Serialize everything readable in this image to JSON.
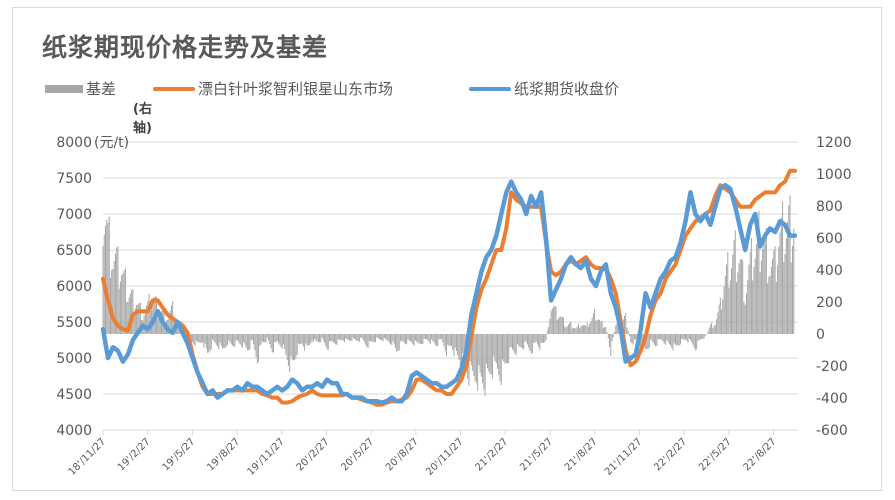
{
  "title": "纸浆期现价格走势及基差",
  "legend": {
    "basis": {
      "label": "基差",
      "sub": "(右轴)",
      "color": "#a6a6a6"
    },
    "spot": {
      "label": "漂白针叶浆智利银星山东市场",
      "color": "#ed7d31"
    },
    "futures": {
      "label": "纸浆期货收盘价",
      "color": "#5b9bd5"
    }
  },
  "axes": {
    "left_unit": "(元/t)",
    "left_ticks": [
      "8000",
      "7500",
      "7000",
      "6500",
      "6000",
      "5500",
      "5000",
      "4500",
      "4000"
    ],
    "right_ticks": [
      "1200",
      "1000",
      "800",
      "600",
      "400",
      "200",
      "0",
      "-200",
      "-400",
      "-600"
    ],
    "x_ticks": [
      "18'/11/27",
      "19'/2/27",
      "19'/5/27",
      "19'/8/27",
      "19'/11/27",
      "20'/2/27",
      "20'/5/27",
      "20'/8/27",
      "20'/11/27",
      "21'/2/27",
      "21'/5/27",
      "21'/8/27",
      "21'/11/27",
      "22'/2/27",
      "22'/5/27",
      "22'/8/27"
    ]
  },
  "chart_data": {
    "type": "line",
    "title": "纸浆期现价格走势及基差",
    "xlabel": "",
    "ylabel": "(元/t)",
    "ylim": [
      4000,
      8000
    ],
    "y2lim": [
      -600,
      1200
    ],
    "grid": true,
    "legend_position": "top",
    "x_tick_labels": [
      "18'/11/27",
      "19'/2/27",
      "19'/5/27",
      "19'/8/27",
      "19'/11/27",
      "20'/2/27",
      "20'/5/27",
      "20'/8/27",
      "20'/11/27",
      "21'/2/27",
      "21'/5/27",
      "21'/8/27",
      "21'/11/27",
      "22'/2/27",
      "22'/5/27",
      "22'/8/27"
    ],
    "sample_note": "values sampled at uniform intervals from 2018-11-27 to ~2022-10",
    "series": [
      {
        "name": "漂白针叶浆智利银星山东市场",
        "axis": "left",
        "type": "line",
        "color": "#ed7d31",
        "values": [
          6100,
          5800,
          5550,
          5450,
          5400,
          5380,
          5600,
          5650,
          5650,
          5650,
          5800,
          5800,
          5700,
          5600,
          5550,
          5500,
          5450,
          5350,
          5050,
          4800,
          4600,
          4500,
          4500,
          4500,
          4500,
          4550,
          4550,
          4550,
          4550,
          4550,
          4550,
          4550,
          4500,
          4480,
          4450,
          4450,
          4380,
          4380,
          4400,
          4450,
          4480,
          4500,
          4550,
          4500,
          4480,
          4480,
          4480,
          4480,
          4480,
          4500,
          4450,
          4450,
          4420,
          4400,
          4380,
          4350,
          4350,
          4380,
          4400,
          4400,
          4420,
          4450,
          4550,
          4700,
          4700,
          4650,
          4600,
          4550,
          4550,
          4500,
          4500,
          4600,
          4700,
          4900,
          5300,
          5700,
          5950,
          6100,
          6300,
          6500,
          6500,
          6800,
          7300,
          7200,
          7150,
          7100,
          7100,
          7100,
          7100,
          6600,
          6200,
          6150,
          6200,
          6300,
          6350,
          6300,
          6350,
          6400,
          6300,
          6250,
          6250,
          6250,
          6100,
          5900,
          5500,
          5100,
          4900,
          4950,
          5100,
          5300,
          5600,
          5800,
          5900,
          6100,
          6200,
          6300,
          6500,
          6700,
          6800,
          6900,
          6950,
          7000,
          7050,
          7250,
          7400,
          7350,
          7300,
          7200,
          7100,
          7100,
          7100,
          7200,
          7250,
          7300,
          7300,
          7300,
          7400,
          7450,
          7600,
          7600
        ]
      },
      {
        "name": "纸浆期货收盘价",
        "axis": "left",
        "type": "line",
        "color": "#5b9bd5",
        "values": [
          5400,
          5000,
          5150,
          5100,
          4950,
          5050,
          5250,
          5350,
          5450,
          5400,
          5500,
          5650,
          5500,
          5400,
          5350,
          5500,
          5350,
          5200,
          5000,
          4800,
          4650,
          4500,
          4550,
          4450,
          4500,
          4550,
          4550,
          4600,
          4550,
          4650,
          4600,
          4600,
          4550,
          4500,
          4550,
          4600,
          4550,
          4600,
          4700,
          4650,
          4550,
          4600,
          4600,
          4650,
          4600,
          4700,
          4650,
          4650,
          4500,
          4500,
          4450,
          4450,
          4450,
          4400,
          4400,
          4400,
          4380,
          4400,
          4450,
          4400,
          4400,
          4500,
          4750,
          4800,
          4750,
          4700,
          4650,
          4650,
          4600,
          4600,
          4650,
          4700,
          4850,
          5100,
          5600,
          5900,
          6200,
          6400,
          6500,
          6700,
          7000,
          7300,
          7450,
          7300,
          7200,
          7000,
          7250,
          7100,
          7300,
          6650,
          5800,
          5950,
          6100,
          6300,
          6400,
          6300,
          6250,
          6350,
          6100,
          6000,
          6200,
          6300,
          5900,
          5700,
          5400,
          4950,
          5000,
          5050,
          5400,
          5900,
          5700,
          5900,
          6100,
          6200,
          6350,
          6400,
          6600,
          6900,
          7300,
          7000,
          6900,
          7000,
          6850,
          7100,
          7350,
          7400,
          7350,
          7100,
          6800,
          6500,
          6850,
          7000,
          6550,
          6700,
          6800,
          6750,
          6900,
          6850,
          6700,
          6700
        ]
      },
      {
        "name": "基差",
        "axis": "right",
        "type": "bar",
        "color": "#a6a6a6",
        "values": [
          1000,
          720,
          560,
          480,
          420,
          300,
          260,
          220,
          140,
          200,
          280,
          180,
          150,
          120,
          180,
          60,
          80,
          -80,
          -60,
          -80,
          -50,
          -150,
          -60,
          -80,
          -120,
          -60,
          -80,
          -60,
          -80,
          -120,
          -60,
          -180,
          -60,
          -40,
          -120,
          -60,
          -80,
          -180,
          -240,
          -120,
          -70,
          -120,
          -40,
          -60,
          -40,
          -100,
          -60,
          -60,
          -40,
          -50,
          -40,
          -50,
          -40,
          -80,
          -60,
          -40,
          -40,
          -50,
          -60,
          -120,
          -60,
          -60,
          -60,
          -80,
          -60,
          -40,
          -60,
          -80,
          -40,
          -120,
          -80,
          -160,
          -200,
          -280,
          -320,
          -300,
          -340,
          -340,
          -260,
          -250,
          -280,
          -200,
          -120,
          -120,
          -100,
          -80,
          -120,
          -60,
          -100,
          -40,
          200,
          150,
          120,
          60,
          70,
          40,
          80,
          50,
          100,
          150,
          80,
          60,
          -120,
          60,
          80,
          120,
          -60,
          -60,
          -80,
          -120,
          -60,
          -80,
          -40,
          -60,
          -80,
          -100,
          -60,
          -40,
          -60,
          -100,
          -40,
          -20,
          60,
          80,
          200,
          400,
          500,
          600,
          550,
          300,
          500,
          600,
          700,
          650,
          500,
          480,
          700,
          750,
          800,
          850
        ]
      }
    ]
  }
}
